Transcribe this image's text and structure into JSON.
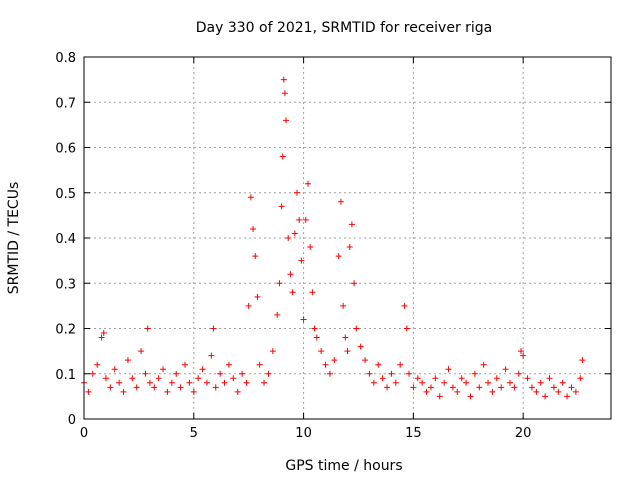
{
  "chart_data": {
    "type": "scatter",
    "title": "Day 330 of 2021, SRMTID for receiver riga",
    "xlabel": "GPS time / hours",
    "ylabel": "SRMTID / TECUs",
    "xlim": [
      0,
      24
    ],
    "ylim": [
      0,
      0.8
    ],
    "xticks": [
      0,
      5,
      10,
      15,
      20
    ],
    "yticks": [
      0,
      0.1,
      0.2,
      0.3,
      0.4,
      0.5,
      0.6,
      0.7,
      0.8
    ],
    "xtick_labels": [
      "0",
      "5",
      "10",
      "15",
      "20"
    ],
    "ytick_labels": [
      "0",
      "0.1",
      "0.2",
      "0.3",
      "0.4",
      "0.5",
      "0.6",
      "0.7",
      "0.8"
    ],
    "grid": true,
    "marker": "+",
    "color": "#ff0000",
    "series": [
      {
        "name": "SRMTID",
        "x": [
          0.0,
          0.2,
          0.4,
          0.6,
          0.8,
          0.9,
          1.0,
          1.2,
          1.4,
          1.6,
          1.8,
          2.0,
          2.2,
          2.4,
          2.6,
          2.8,
          2.9,
          3.0,
          3.2,
          3.4,
          3.6,
          3.8,
          4.0,
          4.2,
          4.4,
          4.6,
          4.8,
          5.0,
          5.2,
          5.4,
          5.6,
          5.8,
          5.9,
          6.0,
          6.2,
          6.4,
          6.6,
          6.8,
          7.0,
          7.2,
          7.4,
          7.5,
          7.6,
          7.7,
          7.8,
          7.9,
          8.0,
          8.2,
          8.4,
          8.6,
          8.8,
          8.9,
          9.0,
          9.05,
          9.1,
          9.15,
          9.2,
          9.3,
          9.4,
          9.5,
          9.6,
          9.7,
          9.8,
          9.9,
          10.0,
          10.1,
          10.2,
          10.3,
          10.4,
          10.5,
          10.6,
          10.8,
          11.0,
          11.2,
          11.4,
          11.6,
          11.7,
          11.8,
          11.9,
          12.0,
          12.1,
          12.2,
          12.3,
          12.4,
          12.6,
          12.8,
          13.0,
          13.2,
          13.4,
          13.6,
          13.8,
          14.0,
          14.2,
          14.4,
          14.6,
          14.7,
          14.8,
          15.0,
          15.2,
          15.4,
          15.6,
          15.8,
          16.0,
          16.2,
          16.4,
          16.6,
          16.8,
          17.0,
          17.2,
          17.4,
          17.6,
          17.8,
          18.0,
          18.2,
          18.4,
          18.6,
          18.8,
          19.0,
          19.2,
          19.4,
          19.6,
          19.8,
          19.9,
          20.0,
          20.2,
          20.4,
          20.6,
          20.8,
          21.0,
          21.2,
          21.4,
          21.6,
          21.8,
          22.0,
          22.2,
          22.4,
          22.6,
          22.7
        ],
        "y": [
          0.08,
          0.06,
          0.1,
          0.12,
          0.18,
          0.19,
          0.09,
          0.07,
          0.11,
          0.08,
          0.06,
          0.13,
          0.09,
          0.07,
          0.15,
          0.1,
          0.2,
          0.08,
          0.07,
          0.09,
          0.11,
          0.06,
          0.08,
          0.1,
          0.07,
          0.12,
          0.08,
          0.06,
          0.09,
          0.11,
          0.08,
          0.14,
          0.2,
          0.07,
          0.1,
          0.08,
          0.12,
          0.09,
          0.06,
          0.1,
          0.08,
          0.25,
          0.49,
          0.42,
          0.36,
          0.27,
          0.12,
          0.08,
          0.1,
          0.15,
          0.23,
          0.3,
          0.47,
          0.58,
          0.75,
          0.72,
          0.66,
          0.4,
          0.32,
          0.28,
          0.41,
          0.5,
          0.44,
          0.35,
          0.22,
          0.44,
          0.52,
          0.38,
          0.28,
          0.2,
          0.18,
          0.15,
          0.12,
          0.1,
          0.13,
          0.36,
          0.48,
          0.25,
          0.18,
          0.15,
          0.38,
          0.43,
          0.3,
          0.2,
          0.16,
          0.13,
          0.1,
          0.08,
          0.12,
          0.09,
          0.07,
          0.1,
          0.08,
          0.12,
          0.25,
          0.2,
          0.1,
          0.07,
          0.09,
          0.08,
          0.06,
          0.07,
          0.09,
          0.05,
          0.08,
          0.11,
          0.07,
          0.06,
          0.09,
          0.08,
          0.05,
          0.1,
          0.07,
          0.12,
          0.08,
          0.06,
          0.09,
          0.07,
          0.11,
          0.08,
          0.07,
          0.1,
          0.15,
          0.14,
          0.09,
          0.07,
          0.06,
          0.08,
          0.05,
          0.09,
          0.07,
          0.06,
          0.08,
          0.05,
          0.07,
          0.06,
          0.09,
          0.13
        ]
      }
    ]
  }
}
